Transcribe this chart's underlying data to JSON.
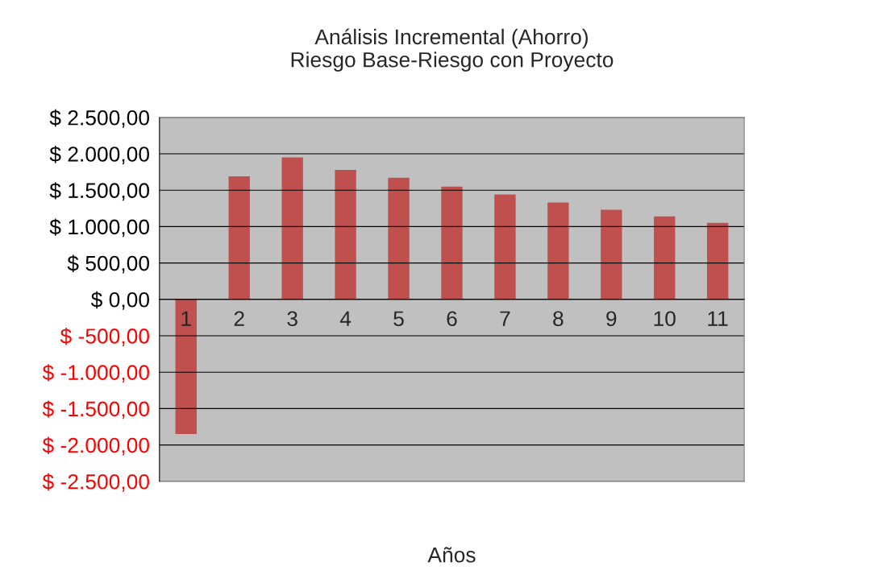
{
  "chart_data": {
    "type": "bar",
    "title": "Análisis Incremental (Ahorro)\nRiesgo Base-Riesgo con Proyecto",
    "xlabel": "Años",
    "categories": [
      "1",
      "2",
      "3",
      "4",
      "5",
      "6",
      "7",
      "8",
      "9",
      "10",
      "11"
    ],
    "values": [
      -1850,
      1690,
      1950,
      1780,
      1670,
      1550,
      1440,
      1330,
      1230,
      1140,
      1050
    ],
    "color": "#c0504d",
    "ylim": [
      -2500,
      2500
    ],
    "yticks": [
      {
        "value": -2500,
        "label": "$ -2.500,00"
      },
      {
        "value": -2000,
        "label": "$ -2.000,00"
      },
      {
        "value": -1500,
        "label": "$ -1.500,00"
      },
      {
        "value": -1000,
        "label": "$ -1.000,00"
      },
      {
        "value": -500,
        "label": "$ -500,00"
      },
      {
        "value": 0,
        "label": "$ 0,00"
      },
      {
        "value": 500,
        "label": "$ 500,00"
      },
      {
        "value": 1000,
        "label": "$ 1.000,00"
      },
      {
        "value": 1500,
        "label": "$ 1.500,00"
      },
      {
        "value": 2000,
        "label": "$ 2.000,00"
      },
      {
        "value": 2500,
        "label": "$ 2.500,00"
      }
    ],
    "grid": "y",
    "legend": false
  }
}
